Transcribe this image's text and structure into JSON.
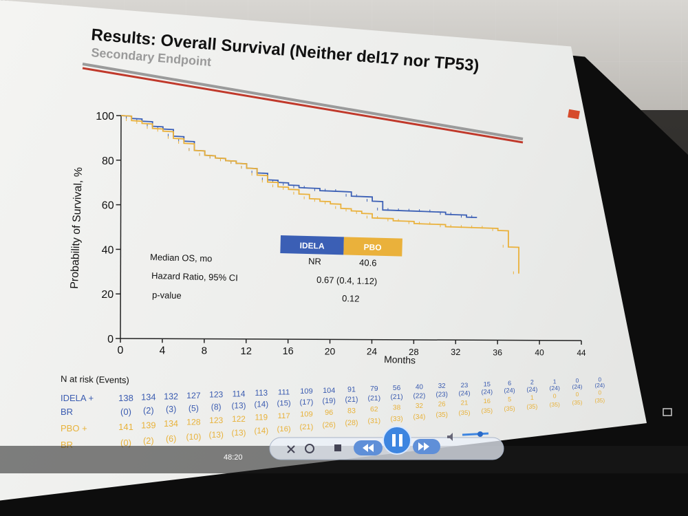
{
  "slide": {
    "title": "Results: Overall Survival (Neither del17 nor TP53)",
    "subtitle": "Secondary Endpoint"
  },
  "colors": {
    "idela": "#3b5fb5",
    "pbo": "#eab13b",
    "title_rule": "#c0392b"
  },
  "chart_data": {
    "type": "line",
    "xlabel": "Months",
    "ylabel": "Probability of Survival, %",
    "xlim": [
      0,
      44
    ],
    "ylim": [
      0,
      100
    ],
    "xticks": [
      0,
      4,
      8,
      12,
      16,
      20,
      24,
      28,
      32,
      36,
      40,
      44
    ],
    "yticks": [
      0,
      20,
      40,
      60,
      80,
      100
    ],
    "series": [
      {
        "name": "IDELA",
        "x": [
          0,
          1,
          2,
          3,
          4,
          5,
          6,
          7,
          8,
          9,
          10,
          11,
          12,
          13,
          14,
          15,
          16,
          17,
          18,
          19,
          20,
          21,
          22,
          23,
          24,
          25,
          26,
          27,
          28,
          29,
          30,
          31,
          32,
          33,
          34
        ],
        "y": [
          100,
          99,
          98,
          96,
          95,
          92,
          90,
          86,
          84,
          83,
          82,
          81,
          79,
          77,
          74,
          73,
          72,
          71,
          71,
          70,
          70,
          70,
          68,
          68,
          66,
          62,
          62,
          62,
          62,
          62,
          62,
          61,
          61,
          60,
          60
        ]
      },
      {
        "name": "PBO",
        "x": [
          0,
          1,
          2,
          3,
          4,
          5,
          6,
          7,
          8,
          9,
          10,
          11,
          12,
          13,
          14,
          15,
          16,
          17,
          18,
          19,
          20,
          21,
          22,
          23,
          24,
          25,
          26,
          27,
          28,
          29,
          30,
          31,
          32,
          33,
          34,
          35,
          36,
          37,
          38
        ],
        "y": [
          100,
          98,
          97,
          95,
          94,
          91,
          89,
          86,
          84,
          83,
          82,
          81,
          79,
          76,
          73,
          71,
          70,
          68,
          66,
          65,
          64,
          62,
          61,
          60,
          58,
          58,
          57,
          57,
          56,
          56,
          56,
          55,
          55,
          55,
          55,
          55,
          54,
          46,
          33
        ]
      }
    ],
    "legend": [
      "IDELA",
      "PBO"
    ]
  },
  "summary_table": {
    "rows": [
      {
        "label": "Median OS, mo",
        "idela": "NR",
        "pbo": "40.6"
      },
      {
        "label": "Hazard Ratio, 95% CI",
        "value": "0.67 (0.4, 1.12)"
      },
      {
        "label": "p-value",
        "value": "0.12"
      }
    ]
  },
  "risk_table": {
    "header": "N at risk (Events)",
    "idela_label": "IDELA +",
    "idela_label2": "BR",
    "pbo_label": "PBO +",
    "pbo_label2": "BR",
    "idela": [
      "138",
      "134",
      "132",
      "127",
      "123",
      "114",
      "113",
      "111",
      "109",
      "104",
      "91",
      "79",
      "56",
      "40",
      "32",
      "23",
      "15",
      "6",
      "2",
      "1",
      "0",
      "0"
    ],
    "idela_events": [
      "(0)",
      "(2)",
      "(3)",
      "(5)",
      "(8)",
      "(13)",
      "(14)",
      "(15)",
      "(17)",
      "(19)",
      "(21)",
      "(21)",
      "(21)",
      "(22)",
      "(23)",
      "(24)",
      "(24)",
      "(24)",
      "(24)",
      "(24)",
      "(24)",
      "(24)"
    ],
    "pbo": [
      "141",
      "139",
      "134",
      "128",
      "123",
      "122",
      "119",
      "117",
      "109",
      "96",
      "83",
      "62",
      "38",
      "32",
      "26",
      "21",
      "16",
      "5",
      "1",
      "0",
      "0",
      "0"
    ],
    "pbo_events": [
      "(0)",
      "(2)",
      "(6)",
      "(10)",
      "(13)",
      "(13)",
      "(14)",
      "(16)",
      "(21)",
      "(26)",
      "(28)",
      "(31)",
      "(33)",
      "(34)",
      "(35)",
      "(35)",
      "(35)",
      "(35)",
      "(35)",
      "(35)",
      "(35)",
      "(35)"
    ]
  },
  "player": {
    "time": "48:20"
  }
}
